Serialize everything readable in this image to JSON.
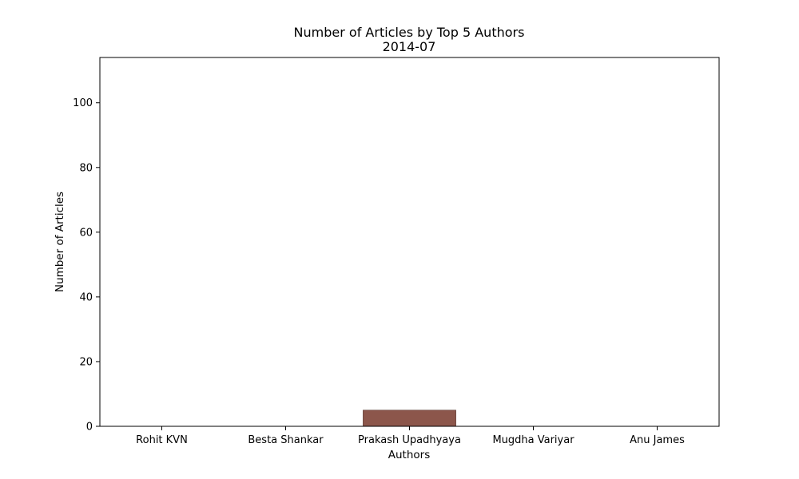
{
  "chart_data": {
    "type": "bar",
    "title": "Number of Articles by Top 5 Authors",
    "subtitle": "2014-07",
    "xlabel": "Authors",
    "ylabel": "Number of Articles",
    "categories": [
      "Rohit KVN",
      "Besta Shankar",
      "Prakash Upadhyaya",
      "Mugdha Variyar",
      "Anu James"
    ],
    "values": [
      0,
      0,
      5,
      0,
      0
    ],
    "ylim": [
      0,
      114
    ],
    "yticks": [
      0,
      20,
      40,
      60,
      80,
      100
    ],
    "ytick_labels": [
      "0",
      "20",
      "40",
      "60",
      "80",
      "100"
    ],
    "grid": false,
    "bar_color": "#8c564b"
  }
}
